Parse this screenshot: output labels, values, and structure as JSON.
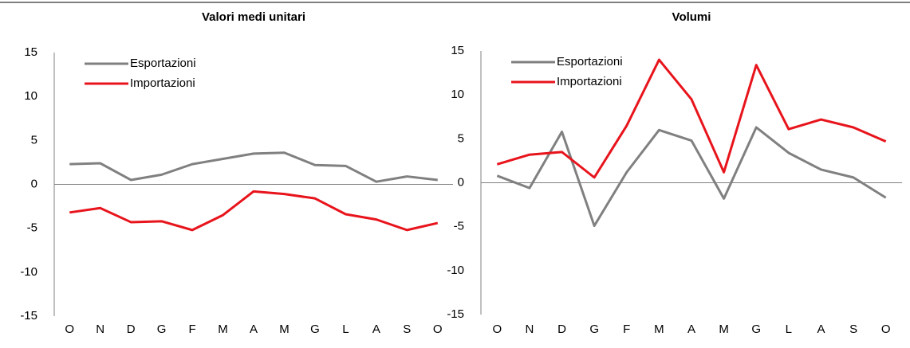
{
  "chart_data": [
    {
      "type": "line",
      "title": "Valori medi unitari",
      "categories": [
        "O",
        "N",
        "D",
        "G",
        "F",
        "M",
        "A",
        "M",
        "G",
        "L",
        "A",
        "S",
        "O"
      ],
      "series": [
        {
          "name": "Esportazioni",
          "color": "#808080",
          "values": [
            2.3,
            2.4,
            0.5,
            1.1,
            2.3,
            2.9,
            3.5,
            3.6,
            2.2,
            2.1,
            0.3,
            0.9,
            0.5
          ]
        },
        {
          "name": "Importazioni",
          "color": "#e8141c",
          "values": [
            -3.2,
            -2.7,
            -4.3,
            -4.2,
            -5.2,
            -3.5,
            -0.8,
            -1.1,
            -1.6,
            -3.4,
            -4.0,
            -5.2,
            -4.4
          ]
        }
      ],
      "ylim": [
        -15,
        15
      ],
      "yticks": [
        15,
        10,
        5,
        0,
        -5,
        -10,
        -15
      ],
      "legend": "upper left",
      "grid": false
    },
    {
      "type": "line",
      "title": "Volumi",
      "categories": [
        "O",
        "N",
        "D",
        "G",
        "F",
        "M",
        "A",
        "M",
        "G",
        "L",
        "A",
        "S",
        "O"
      ],
      "series": [
        {
          "name": "Esportazioni",
          "color": "#808080",
          "values": [
            0.8,
            -0.6,
            5.8,
            -4.9,
            1.2,
            6.0,
            4.8,
            -1.8,
            6.3,
            3.4,
            1.5,
            0.6,
            -1.7
          ]
        },
        {
          "name": "Importazioni",
          "color": "#e8141c",
          "values": [
            2.1,
            3.2,
            3.5,
            0.6,
            6.5,
            14.0,
            9.5,
            1.2,
            13.4,
            6.1,
            7.2,
            6.3,
            4.7
          ]
        }
      ],
      "ylim": [
        -15,
        15
      ],
      "yticks": [
        15,
        10,
        5,
        0,
        -5,
        -10,
        -15
      ],
      "legend": "upper left",
      "grid": false
    }
  ]
}
